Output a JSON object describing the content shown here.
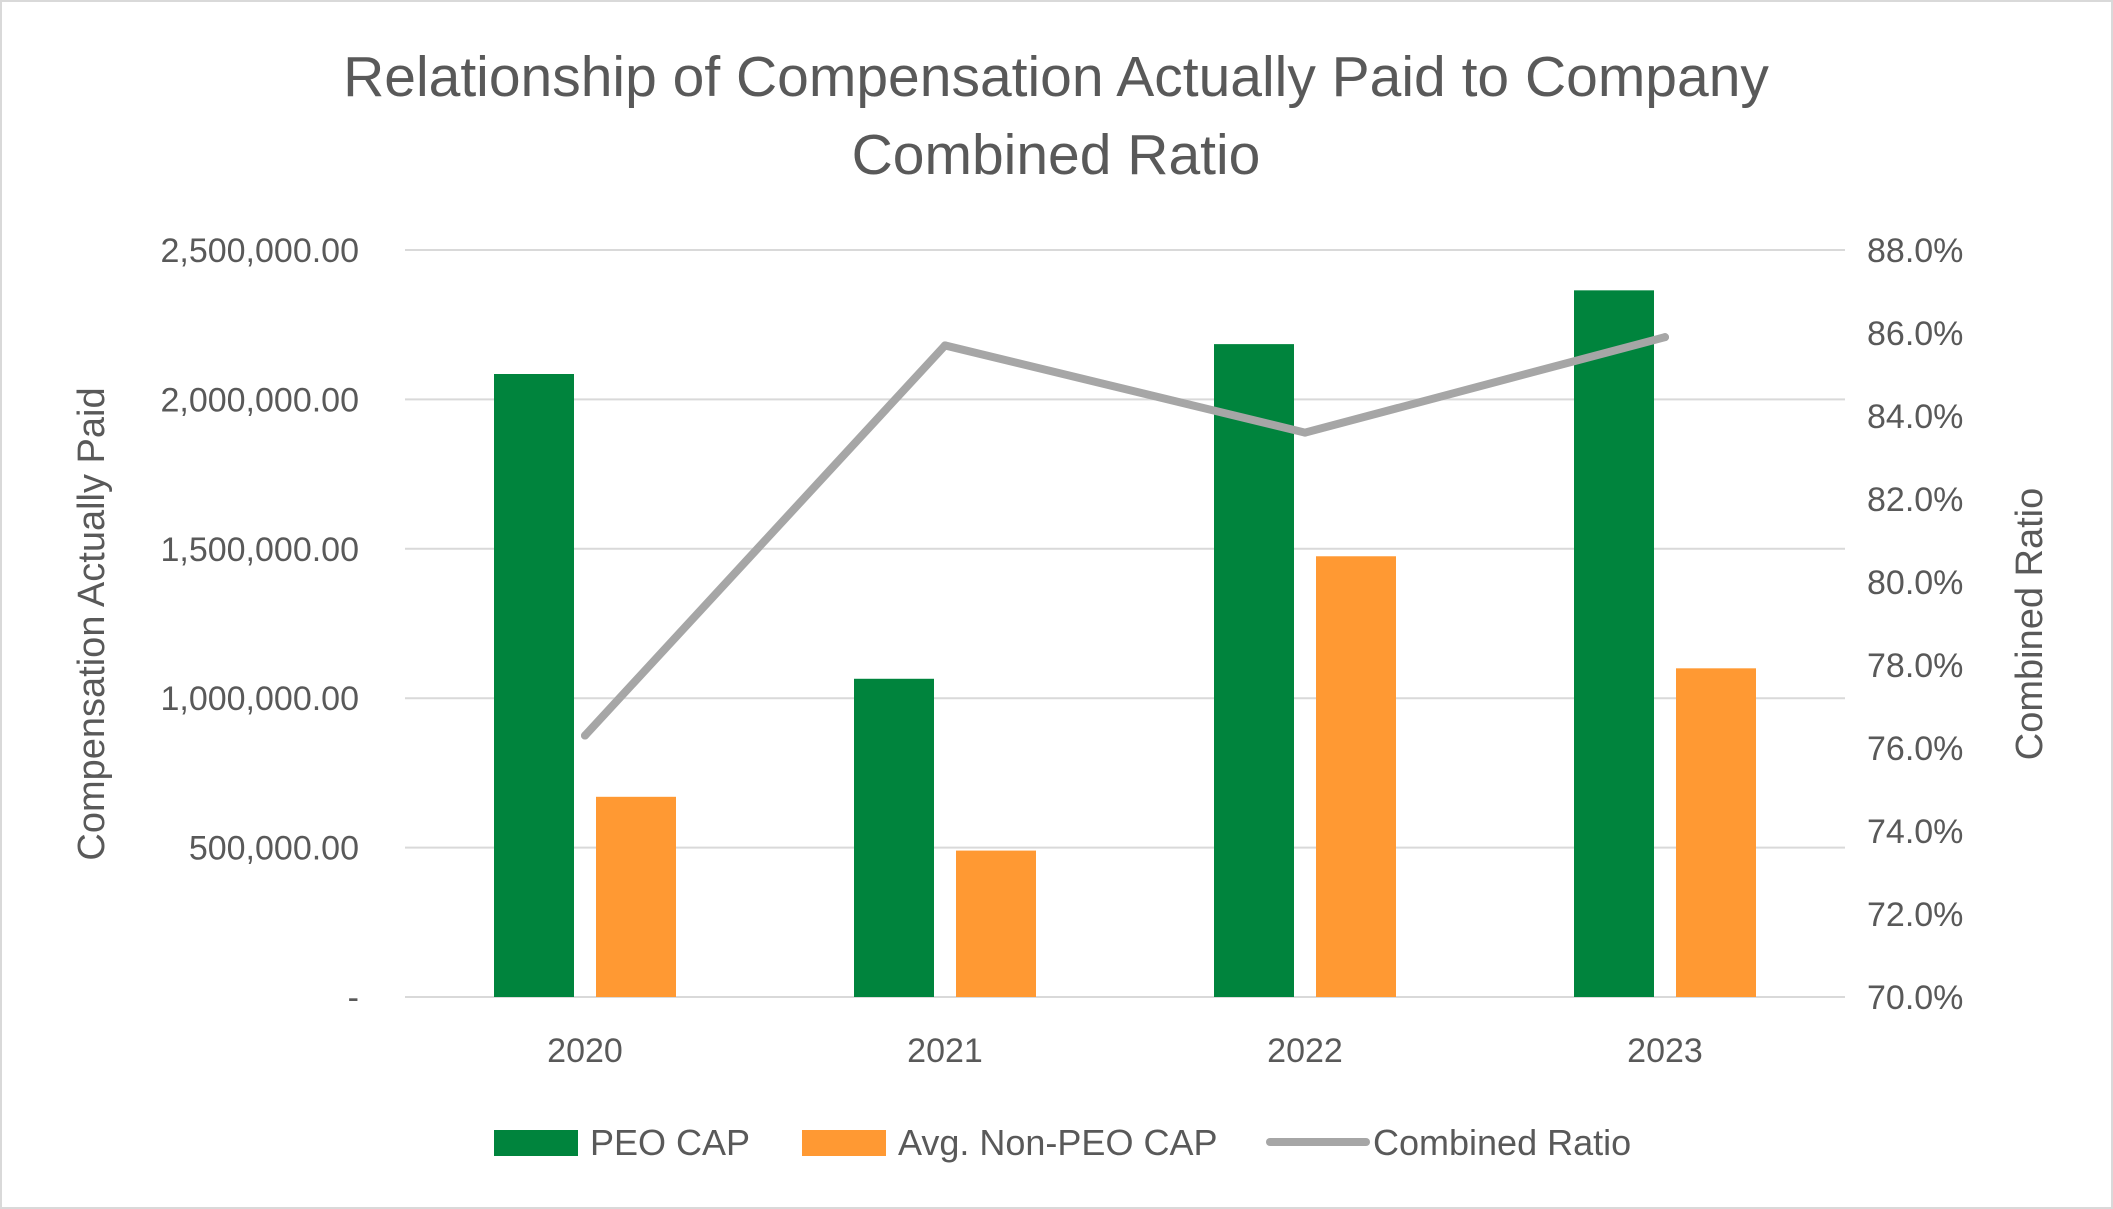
{
  "chart_data": {
    "type": "bar",
    "title": "Relationship of Compensation Actually Paid to Company Combined Ratio",
    "title_lines": [
      "Relationship of Compensation Actually Paid to Company",
      "Combined Ratio"
    ],
    "categories": [
      "2020",
      "2021",
      "2022",
      "2023"
    ],
    "series": [
      {
        "name": "PEO CAP",
        "type": "bar",
        "axis": "left",
        "color": "#00843d",
        "values": [
          2085000,
          1065000,
          2185000,
          2365000
        ]
      },
      {
        "name": "Avg. Non-PEO CAP",
        "type": "bar",
        "axis": "left",
        "color": "#ff9933",
        "values": [
          670000,
          490000,
          1475000,
          1100000
        ]
      },
      {
        "name": "Combined Ratio",
        "type": "line",
        "axis": "right",
        "color": "#a6a6a6",
        "values": [
          76.3,
          85.7,
          83.6,
          85.9
        ]
      }
    ],
    "ylabel": "Compensation Actually Paid",
    "ylabel_right": "Combined Ratio",
    "ylim": [
      0,
      2500000
    ],
    "ylim_right": [
      70,
      88
    ],
    "yticks": [
      {
        "value": 0,
        "label": "-"
      },
      {
        "value": 500000,
        "label": "500,000.00"
      },
      {
        "value": 1000000,
        "label": "1,000,000.00"
      },
      {
        "value": 1500000,
        "label": "1,500,000.00"
      },
      {
        "value": 2000000,
        "label": "2,000,000.00"
      },
      {
        "value": 2500000,
        "label": "2,500,000.00"
      }
    ],
    "yticks_right": [
      {
        "value": 70,
        "label": "70.0%"
      },
      {
        "value": 72,
        "label": "72.0%"
      },
      {
        "value": 74,
        "label": "74.0%"
      },
      {
        "value": 76,
        "label": "76.0%"
      },
      {
        "value": 78,
        "label": "78.0%"
      },
      {
        "value": 80,
        "label": "80.0%"
      },
      {
        "value": 82,
        "label": "82.0%"
      },
      {
        "value": 84,
        "label": "84.0%"
      },
      {
        "value": 86,
        "label": "86.0%"
      },
      {
        "value": 88,
        "label": "88.0%"
      }
    ],
    "grid": true,
    "legend_position": "bottom"
  }
}
